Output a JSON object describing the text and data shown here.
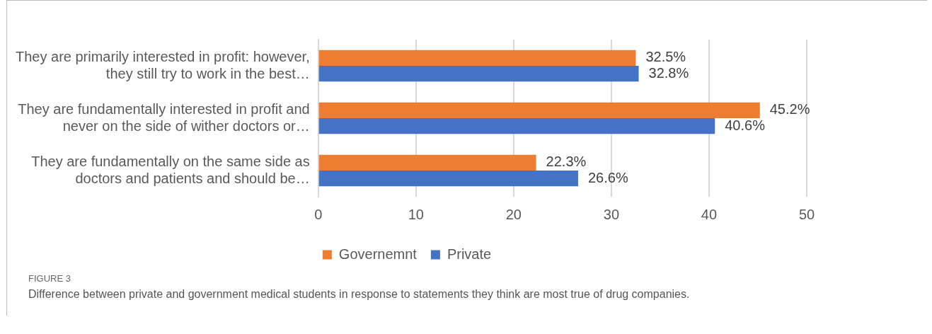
{
  "chart_data": {
    "type": "bar",
    "orientation": "horizontal",
    "categories": [
      "They are primarily interested in profit: however, they still try to work in the best…",
      "They are fundamentally interested in profit and never on the side of wither doctors or…",
      "They are fundamentally on the same side as doctors and patients and should be…"
    ],
    "series": [
      {
        "name": "Governemnt",
        "color": "#ed7d31",
        "values": [
          32.5,
          45.2,
          22.3
        ],
        "value_labels": [
          "32.5%",
          "45.2%",
          "22.3%"
        ]
      },
      {
        "name": "Private",
        "color": "#4472c4",
        "values": [
          32.8,
          40.6,
          26.6
        ],
        "value_labels": [
          "32.8%",
          "40.6%",
          "26.6%"
        ]
      }
    ],
    "xlim": [
      0,
      50
    ],
    "xticks": [
      0,
      10,
      20,
      30,
      40,
      50
    ],
    "grid": "x",
    "legend": "bottom",
    "annotations": [
      "FIGURE 3",
      "Difference between private and government medical students in response to statements they think are most true of drug companies."
    ]
  }
}
